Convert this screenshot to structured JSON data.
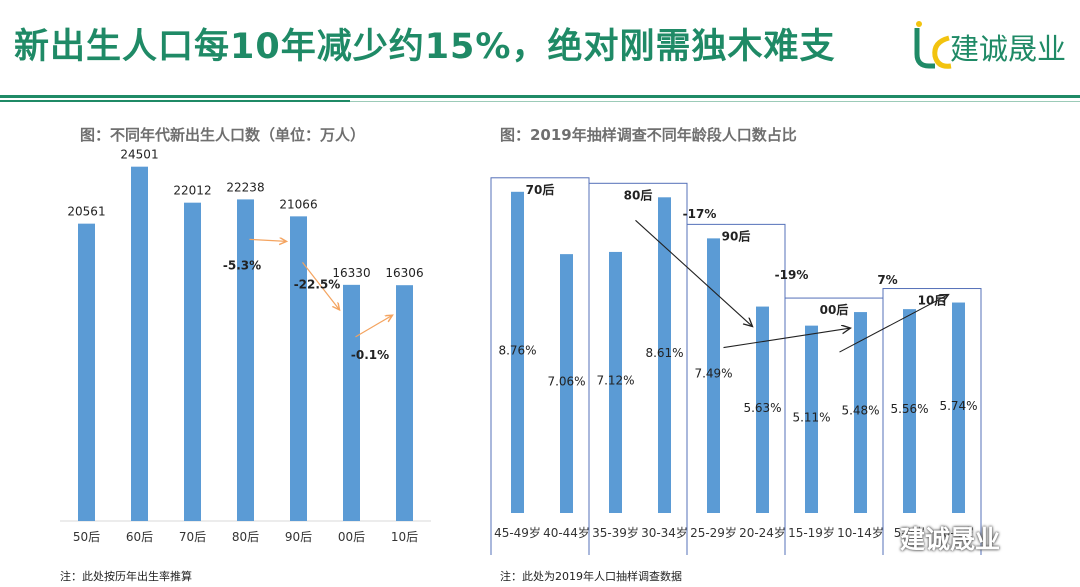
{
  "header": {
    "title": "新出生人口每10年减少约15%，绝对刚需独木难支",
    "brand": "建诚晟业",
    "accent": "#1f8a66"
  },
  "left_chart": {
    "title": "图：不同年代新出生人口数（单位：万人）",
    "note": "注：此处按历年出生率推算"
  },
  "right_chart": {
    "title": "图：2019年抽样调查不同年龄段人口数占比",
    "note": "注：此处为2019年人口抽样调查数据"
  },
  "watermark": "建诚晟业",
  "bar_color": "#5b9bd5",
  "chart_data": [
    {
      "type": "bar",
      "title": "图：不同年代新出生人口数（单位：万人）",
      "categories": [
        "50后",
        "60后",
        "70后",
        "80后",
        "90后",
        "00后",
        "10后"
      ],
      "values": [
        20561,
        24501,
        22012,
        22238,
        21066,
        16330,
        16306
      ],
      "ylim": [
        0,
        26000
      ],
      "annotations": [
        "-5.3%",
        "-22.5%",
        "-0.1%"
      ]
    },
    {
      "type": "bar",
      "title": "图：2019年抽样调查不同年龄段人口数占比",
      "categories": [
        "45-49岁",
        "40-44岁",
        "35-39岁",
        "30-34岁",
        "25-29岁",
        "20-24岁",
        "15-19岁",
        "10-14岁",
        "5-9岁",
        "0-4岁"
      ],
      "values": [
        8.76,
        7.06,
        7.12,
        8.61,
        7.49,
        5.63,
        5.11,
        5.48,
        5.56,
        5.74
      ],
      "value_labels": [
        "8.76%",
        "7.06%",
        "7.12%",
        "8.61%",
        "7.49%",
        "5.63%",
        "5.11%",
        "5.48%",
        "5.56%",
        "5.74%"
      ],
      "ylim": [
        0,
        9.9
      ],
      "groups": [
        "70后",
        "80后",
        "90后",
        "00后",
        "10后"
      ],
      "annotations": [
        "-17%",
        "-19%",
        "7%"
      ]
    }
  ]
}
